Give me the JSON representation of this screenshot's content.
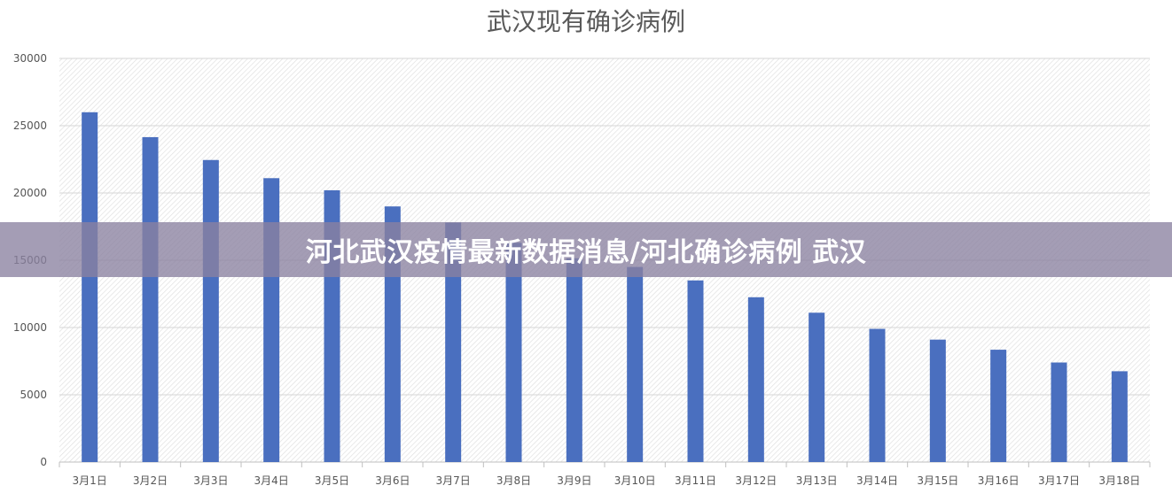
{
  "overlay": {
    "headline": "河北武汉疫情最新数据消息/河北确诊病例 武汉"
  },
  "colors": {
    "bar": "#4a6fbf",
    "grid": "#d6d6d6",
    "hatch": "#dedede",
    "text": "#555555",
    "title": "#595959"
  },
  "chart_data": {
    "type": "bar",
    "title": "武汉现有确诊病例",
    "xlabel": "",
    "ylabel": "",
    "categories": [
      "3月1日",
      "3月2日",
      "3月3日",
      "3月4日",
      "3月5日",
      "3月6日",
      "3月7日",
      "3月8日",
      "3月9日",
      "3月10日",
      "3月11日",
      "3月12日",
      "3月13日",
      "3月14日",
      "3月15日",
      "3月16日",
      "3月17日",
      "3月18日"
    ],
    "values": [
      26000,
      24150,
      22450,
      21100,
      20200,
      19000,
      17800,
      16300,
      15150,
      14500,
      13500,
      12250,
      11100,
      9900,
      9100,
      8350,
      7400,
      6750
    ],
    "ylim": [
      0,
      30000
    ],
    "yticks": [
      0,
      5000,
      10000,
      15000,
      20000,
      25000,
      30000
    ],
    "grid": true,
    "legend": "none"
  }
}
